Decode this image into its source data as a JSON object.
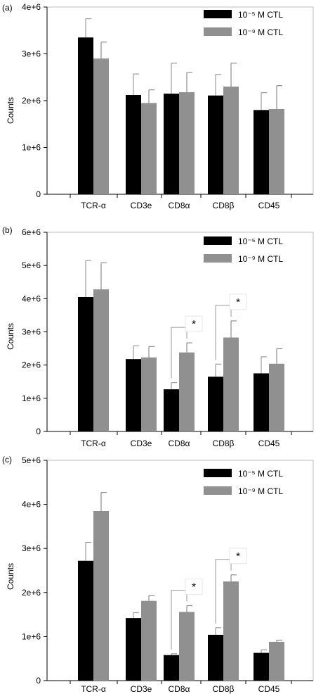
{
  "chart_data": [
    {
      "panel_label": "(a)",
      "type": "bar",
      "ylabel": "Counts",
      "ylim": [
        0,
        4000000
      ],
      "yticks": [
        "0",
        "1e+6",
        "2e+6",
        "3e+6",
        "4e+6"
      ],
      "categories": [
        "TCR-α",
        "CD3e",
        "CD8α",
        "CD8β",
        "CD45"
      ],
      "legend_position": "top-right",
      "series": [
        {
          "name": "10⁻⁵ M CTL",
          "color": "#000000",
          "values": [
            3350000,
            2120000,
            2150000,
            2110000,
            1800000
          ],
          "errors": [
            400000,
            450000,
            650000,
            450000,
            370000
          ]
        },
        {
          "name": "10⁻⁹ M CTL",
          "color": "#909090",
          "values": [
            2900000,
            1950000,
            2180000,
            2300000,
            1820000
          ],
          "errors": [
            350000,
            280000,
            420000,
            500000,
            500000
          ]
        }
      ],
      "significance": []
    },
    {
      "panel_label": "(b)",
      "type": "bar",
      "ylabel": "Counts",
      "ylim": [
        0,
        6000000
      ],
      "yticks": [
        "0",
        "1e+6",
        "2e+6",
        "3e+6",
        "4e+6",
        "5e+6",
        "6e+6"
      ],
      "categories": [
        "TCR-α",
        "CD3e",
        "CD8α",
        "CD8β",
        "CD45"
      ],
      "legend_position": "top-right",
      "series": [
        {
          "name": "10⁻⁵ M CTL",
          "color": "#000000",
          "values": [
            4050000,
            2180000,
            1270000,
            1650000,
            1750000
          ],
          "errors": [
            1100000,
            400000,
            200000,
            380000,
            500000
          ]
        },
        {
          "name": "10⁻⁹ M CTL",
          "color": "#909090",
          "values": [
            4280000,
            2230000,
            2380000,
            2830000,
            2040000
          ],
          "errors": [
            800000,
            330000,
            290000,
            500000,
            450000
          ]
        }
      ],
      "significance": [
        {
          "category_index": 2,
          "label": "*"
        },
        {
          "category_index": 3,
          "label": "*"
        }
      ]
    },
    {
      "panel_label": "(c)",
      "type": "bar",
      "ylabel": "Counts",
      "ylim": [
        0,
        5000000
      ],
      "yticks": [
        "0",
        "1e+6",
        "2e+6",
        "3e+6",
        "4e+6",
        "5e+6"
      ],
      "categories": [
        "TCR-α",
        "CD3e",
        "CD8α",
        "CD8β",
        "CD45"
      ],
      "legend_position": "top-right",
      "series": [
        {
          "name": "10⁻⁵ M CTL",
          "color": "#000000",
          "values": [
            2720000,
            1420000,
            580000,
            1040000,
            630000
          ],
          "errors": [
            420000,
            120000,
            30000,
            160000,
            70000
          ]
        },
        {
          "name": "10⁻⁹ M CTL",
          "color": "#909090",
          "values": [
            3850000,
            1810000,
            1560000,
            2250000,
            880000
          ],
          "errors": [
            420000,
            120000,
            140000,
            150000,
            40000
          ]
        }
      ],
      "significance": [
        {
          "category_index": 2,
          "label": "*"
        },
        {
          "category_index": 3,
          "label": "*"
        }
      ]
    }
  ]
}
